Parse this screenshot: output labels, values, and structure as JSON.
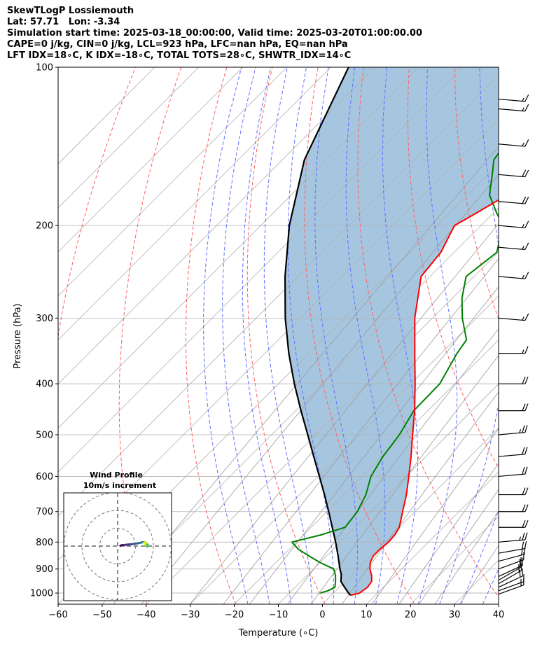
{
  "header": {
    "line1": "SkewTLogP Lossiemouth",
    "line2": "Lat: 57.71   Lon: -3.34",
    "line3": "Simulation start time: 2025-03-18_00:00:00, Valid time: 2025-03-20T01:00:00.00",
    "line4": "CAPE=0 j/kg, CIN=0 j/kg, LCL=923 hPa, LFC=nan hPa, EQ=nan hPa",
    "line5": "LFT IDX=18∘C, K IDX=-18∘C, TOTAL TOTS=28∘C, SHWTR_IDX=14∘C"
  },
  "chart_data": {
    "type": "line",
    "xlabel": "Temperature (∘C)",
    "ylabel": "Pressure (hPa)",
    "xlim": [
      -60,
      40
    ],
    "ylim": [
      1050,
      100
    ],
    "yscale": "log",
    "skew": 45,
    "x_ticks": [
      "−60",
      "−50",
      "−40",
      "−30",
      "−20",
      "−10",
      "0",
      "10",
      "20",
      "30",
      "40"
    ],
    "x_tick_values": [
      -60,
      -50,
      -40,
      -30,
      -20,
      -10,
      0,
      10,
      20,
      30,
      40
    ],
    "y_ticks": [
      "100",
      "200",
      "300",
      "400",
      "500",
      "600",
      "700",
      "800",
      "900",
      "1000"
    ],
    "y_tick_values": [
      100,
      200,
      300,
      400,
      500,
      600,
      700,
      800,
      900,
      1000
    ],
    "grid": true,
    "colors": {
      "temperature": "#ff0000",
      "dewpoint": "#008000",
      "parcel": "#000000",
      "cape_fill": "#a6c6e0",
      "dry_adiabat": "#ff6060",
      "moist_adiabat": "#6070ff",
      "mixing_ratio": "#9a9a9a"
    },
    "series": [
      {
        "key": "temperature",
        "pressure": [
          1010,
          1000,
          975,
          950,
          925,
          900,
          875,
          850,
          825,
          800,
          775,
          750,
          700,
          650,
          600,
          550,
          500,
          450,
          400,
          350,
          300,
          250,
          225,
          200,
          190,
          175,
          160,
          150,
          140,
          130,
          120,
          110,
          100
        ],
        "values": [
          4.4,
          5.9,
          6.4,
          6.0,
          4.6,
          2.8,
          1.4,
          0.6,
          0.6,
          0.9,
          0.7,
          0.0,
          -2.8,
          -5.8,
          -9.4,
          -13.4,
          -18.0,
          -23.0,
          -29.0,
          -36.0,
          -44.0,
          -52.0,
          -53.0,
          -56.0,
          -54.0,
          -51.0,
          -45.0,
          -45.0,
          -46.0,
          -47.0,
          -48.0,
          -48.0,
          -49.0
        ]
      },
      {
        "key": "dewpoint",
        "pressure": [
          1000,
          990,
          975,
          950,
          925,
          900,
          875,
          850,
          825,
          800,
          775,
          750,
          700,
          650,
          600,
          550,
          500,
          450,
          400,
          350,
          330,
          300,
          275,
          250,
          225,
          200,
          190,
          175,
          160,
          150,
          140,
          125,
          100
        ],
        "values": [
          -3.0,
          -1.8,
          -1.0,
          -2.2,
          -3.6,
          -5.4,
          -10.0,
          -14.0,
          -18.0,
          -21.0,
          -16.0,
          -12.3,
          -13.1,
          -15.0,
          -18.0,
          -19.8,
          -21.0,
          -23.2,
          -23.4,
          -26.4,
          -27.3,
          -33.2,
          -37.8,
          -41.8,
          -40.3,
          -45.0,
          -49.0,
          -55.0,
          -59.0,
          -62.0,
          -63.0,
          -63.0,
          -64.0
        ]
      },
      {
        "key": "parcel",
        "pressure": [
          1010,
          1000,
          975,
          950,
          923,
          900,
          850,
          800,
          750,
          700,
          650,
          600,
          550,
          500,
          450,
          400,
          350,
          300,
          250,
          200,
          150,
          100
        ],
        "values": [
          4.4,
          3.4,
          1.2,
          -1.0,
          -2.4,
          -4.0,
          -7.4,
          -11.1,
          -15.2,
          -19.6,
          -24.4,
          -29.7,
          -35.5,
          -41.8,
          -48.8,
          -56.4,
          -64.6,
          -73.4,
          -82.9,
          -93.5,
          -105.0,
          -116.0
        ]
      }
    ],
    "dry_adiabats_thetaK": [
      210,
      230,
      250,
      270,
      290,
      310,
      330,
      350,
      370,
      390,
      410,
      430,
      450,
      470
    ],
    "moist_adiabats_T1000C": [
      -20,
      -15,
      -10,
      -5,
      0,
      5,
      10,
      15,
      20,
      25,
      30,
      35,
      40
    ],
    "mixing_ratios_gkg": [
      0.05,
      0.1,
      0.3,
      0.6,
      1,
      2,
      3,
      5,
      8,
      12,
      16,
      20,
      28
    ],
    "wind_barbs": {
      "pressure": [
        1005,
        990,
        975,
        960,
        945,
        930,
        900,
        870,
        840,
        800,
        750,
        700,
        650,
        600,
        550,
        500,
        450,
        400,
        350,
        300,
        250,
        220,
        200,
        180,
        160,
        140,
        120,
        115
      ],
      "speed_kt": [
        15,
        15,
        20,
        15,
        15,
        20,
        15,
        20,
        20,
        25,
        20,
        20,
        20,
        20,
        20,
        25,
        20,
        20,
        15,
        15,
        15,
        15,
        15,
        20,
        20,
        15,
        15,
        15
      ],
      "direction_deg": [
        250,
        250,
        245,
        240,
        240,
        245,
        250,
        255,
        260,
        265,
        270,
        270,
        270,
        265,
        265,
        265,
        270,
        270,
        270,
        275,
        275,
        275,
        275,
        275,
        275,
        275,
        275,
        275
      ]
    },
    "hodograph": {
      "title": "Wind Profile",
      "subtitle": "10m/s increment",
      "ring_increment_ms": 10,
      "rings": [
        1,
        2,
        3
      ],
      "u_ms": [
        1.5,
        2.5,
        3.5,
        5.0,
        7.0,
        9.0,
        11.0,
        12.5,
        14.0,
        15.5,
        16.5,
        17.0,
        16.5,
        15.5,
        16.0,
        15.5,
        14.8,
        15.5
      ],
      "v_ms": [
        0.2,
        0.6,
        0.5,
        0.8,
        1.0,
        1.2,
        1.5,
        1.8,
        2.2,
        2.0,
        1.0,
        0.2,
        -0.3,
        0.5,
        1.6,
        2.2,
        1.8,
        1.0
      ]
    }
  }
}
